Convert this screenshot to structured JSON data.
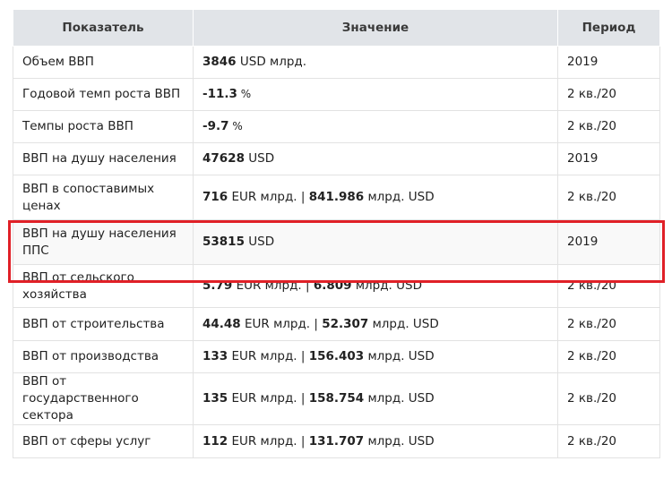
{
  "table": {
    "headers": [
      "Показатель",
      "Значение",
      "Период"
    ],
    "rows": [
      {
        "indicator": "Объем ВВП",
        "value_parts": [
          {
            "bold": "3846",
            "unit": " USD млрд."
          }
        ],
        "period": "2019"
      },
      {
        "indicator": "Годовой темп роста ВВП",
        "value_parts": [
          {
            "bold": "-11.3",
            "unit": " %"
          }
        ],
        "period": "2 кв./20"
      },
      {
        "indicator": "Темпы роста ВВП",
        "value_parts": [
          {
            "bold": "-9.7",
            "unit": " %"
          }
        ],
        "period": "2 кв./20"
      },
      {
        "indicator": "ВВП на душу населения",
        "value_parts": [
          {
            "bold": "47628",
            "unit": " USD"
          }
        ],
        "period": "2019"
      },
      {
        "indicator": "ВВП в сопоставимых ценах",
        "value_parts": [
          {
            "bold": "716",
            "unit": " EUR млрд. | "
          },
          {
            "bold": "841.986",
            "unit": " млрд. USD"
          }
        ],
        "period": "2 кв./20"
      },
      {
        "indicator": "ВВП на душу населения ППС",
        "value_parts": [
          {
            "bold": "53815",
            "unit": " USD"
          }
        ],
        "period": "2019"
      },
      {
        "indicator": "ВВП от сельского хозяйства",
        "value_parts": [
          {
            "bold": "5.79",
            "unit": " EUR млрд. | "
          },
          {
            "bold": "6.809",
            "unit": " млрд. USD"
          }
        ],
        "period": "2 кв./20"
      },
      {
        "indicator": "ВВП от строительства",
        "value_parts": [
          {
            "bold": "44.48",
            "unit": " EUR млрд. | "
          },
          {
            "bold": "52.307",
            "unit": " млрд. USD"
          }
        ],
        "period": "2 кв./20"
      },
      {
        "indicator": "ВВП от производства",
        "value_parts": [
          {
            "bold": "133",
            "unit": " EUR млрд. | "
          },
          {
            "bold": "156.403",
            "unit": " млрд. USD"
          }
        ],
        "period": "2 кв./20"
      },
      {
        "indicator": "ВВП от государственного сектора",
        "value_parts": [
          {
            "bold": "135",
            "unit": " EUR млрд. | "
          },
          {
            "bold": "158.754",
            "unit": " млрд. USD"
          }
        ],
        "period": "2 кв./20"
      },
      {
        "indicator": "ВВП от сферы услуг",
        "value_parts": [
          {
            "bold": "112",
            "unit": " EUR млрд. | "
          },
          {
            "bold": "131.707",
            "unit": " млрд. USD"
          }
        ],
        "period": "2 кв./20"
      }
    ]
  },
  "highlight": {
    "row_indicator": "ВВП на душу населения ППС",
    "color": "#e02027"
  }
}
